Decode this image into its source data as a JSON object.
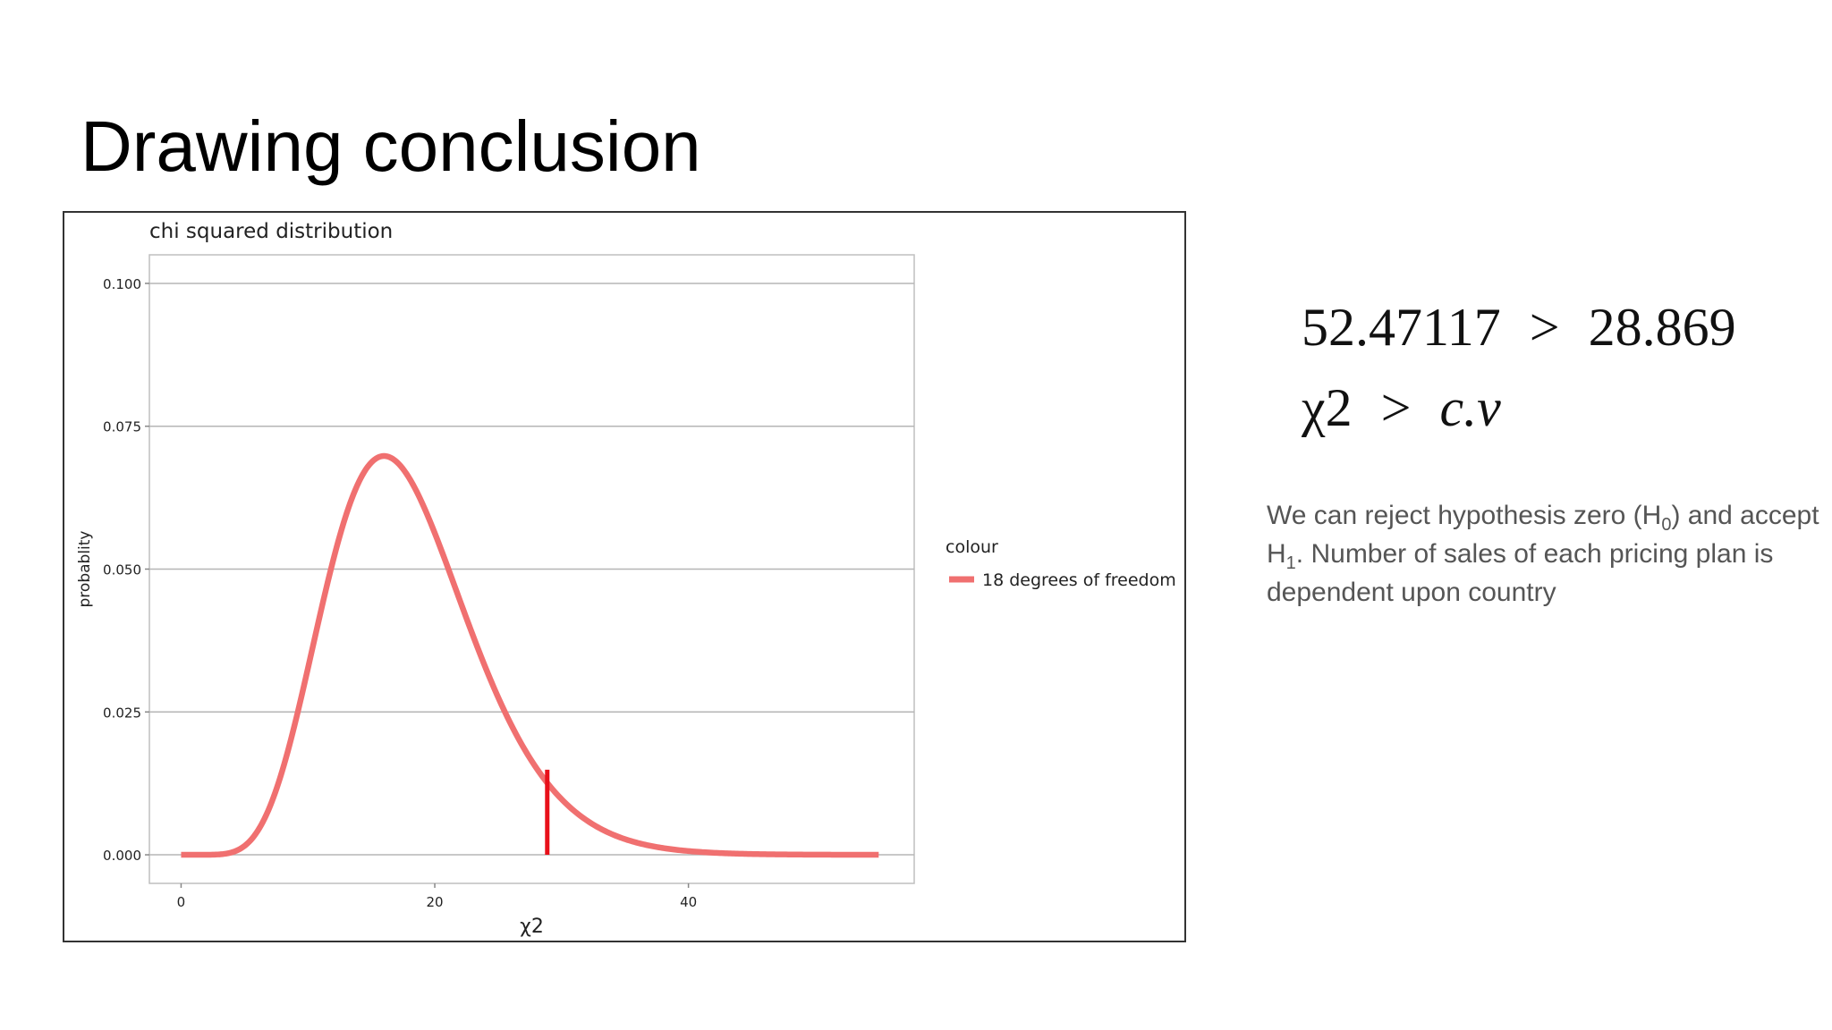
{
  "slide": {
    "title": "Drawing conclusion"
  },
  "inequalities": {
    "line1": {
      "left": "52.47117",
      "op": ">",
      "right": "28.869"
    },
    "line2": {
      "left": "χ2",
      "op": ">",
      "right": "c.v"
    }
  },
  "conclusion": {
    "part1": "We can reject hypothesis zero (H",
    "h0_sub": "0",
    "part2": ") and accept H",
    "h1_sub": "1",
    "part3": ". Number of sales of each pricing plan is dependent upon country"
  },
  "chart_data": {
    "type": "line",
    "title": "chi squared distribution",
    "xlabel": "χ2",
    "ylabel": "probablity",
    "xlim": [
      -2.5,
      57.8
    ],
    "ylim": [
      -0.005,
      0.105
    ],
    "x_ticks": [
      0,
      20,
      40
    ],
    "x_tick_labels": [
      "0",
      "20",
      "40"
    ],
    "y_ticks": [
      0,
      0.025,
      0.05,
      0.075,
      0.1
    ],
    "y_tick_labels": [
      "0.000",
      "0.025",
      "0.050",
      "0.075",
      "0.100"
    ],
    "grid": true,
    "legend": {
      "title": "colour",
      "placement": "right",
      "entries": [
        "18 degrees of freedom"
      ]
    },
    "series": [
      {
        "name": "18 degrees of freedom",
        "color": "#f07070",
        "degrees_of_freedom": 18,
        "x_range": [
          0,
          55
        ]
      }
    ],
    "critical_value": {
      "x": 28.869,
      "y": 0.0149,
      "color": "#e8101a"
    }
  }
}
